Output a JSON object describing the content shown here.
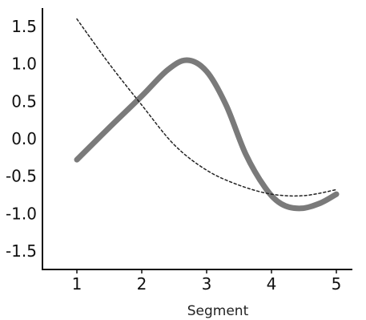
{
  "chart_data": {
    "type": "line",
    "title": "",
    "xlabel": "Segment",
    "ylabel": "",
    "xlim": [
      1,
      5
    ],
    "ylim": [
      -1.5,
      1.5
    ],
    "x_ticks": [
      {
        "value": 1,
        "label": "1"
      },
      {
        "value": 2,
        "label": "2"
      },
      {
        "value": 3,
        "label": "3"
      },
      {
        "value": 4,
        "label": "4"
      },
      {
        "value": 5,
        "label": "5"
      }
    ],
    "y_ticks": [
      {
        "value": 1.5,
        "label": "1.5"
      },
      {
        "value": 1.0,
        "label": "1.0"
      },
      {
        "value": 0.5,
        "label": "0.5"
      },
      {
        "value": 0.0,
        "label": "0.0"
      },
      {
        "value": -0.5,
        "label": "-0.5"
      },
      {
        "value": -1.0,
        "label": "-1.0"
      },
      {
        "value": -1.5,
        "label": "-1.5"
      }
    ],
    "grid": false,
    "legend": "none",
    "series": [
      {
        "style": "solid",
        "color": "#7a7a7a",
        "points": [
          {
            "x": 1.0,
            "y": -0.28
          },
          {
            "x": 1.5,
            "y": 0.15
          },
          {
            "x": 2.0,
            "y": 0.57
          },
          {
            "x": 2.4,
            "y": 0.92
          },
          {
            "x": 2.7,
            "y": 1.05
          },
          {
            "x": 3.0,
            "y": 0.9
          },
          {
            "x": 3.3,
            "y": 0.45
          },
          {
            "x": 3.6,
            "y": -0.2
          },
          {
            "x": 3.9,
            "y": -0.65
          },
          {
            "x": 4.15,
            "y": -0.87
          },
          {
            "x": 4.45,
            "y": -0.93
          },
          {
            "x": 4.75,
            "y": -0.86
          },
          {
            "x": 5.0,
            "y": -0.74
          }
        ]
      },
      {
        "style": "dashed",
        "color": "#222222",
        "points": [
          {
            "x": 1.0,
            "y": 1.6
          },
          {
            "x": 1.5,
            "y": 1.0
          },
          {
            "x": 2.0,
            "y": 0.45
          },
          {
            "x": 2.5,
            "y": -0.08
          },
          {
            "x": 3.0,
            "y": -0.42
          },
          {
            "x": 3.5,
            "y": -0.62
          },
          {
            "x": 4.0,
            "y": -0.74
          },
          {
            "x": 4.5,
            "y": -0.76
          },
          {
            "x": 5.0,
            "y": -0.68
          }
        ]
      }
    ]
  }
}
